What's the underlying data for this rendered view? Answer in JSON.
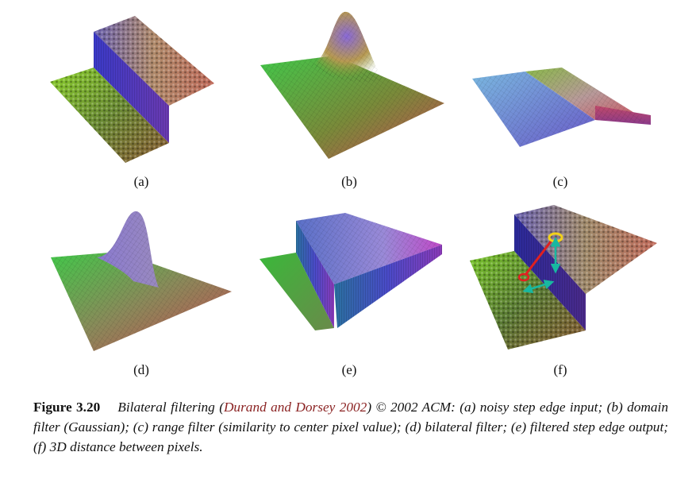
{
  "panels": [
    {
      "id": "a",
      "label": "(a)"
    },
    {
      "id": "b",
      "label": "(b)"
    },
    {
      "id": "c",
      "label": "(c)"
    },
    {
      "id": "d",
      "label": "(d)"
    },
    {
      "id": "e",
      "label": "(e)"
    },
    {
      "id": "f",
      "label": "(f)"
    }
  ],
  "caption": {
    "figure_number": "Figure 3.20",
    "text_before": "Bilateral filtering (",
    "citation": "Durand and Dorsey 2002",
    "text_after": ") © 2002 ACM: (a) noisy step edge input; (b) domain filter (Gaussian); (c) range filter (similarity to center pixel value); (d) bilateral filter; (e) filtered step edge output; (f) 3D distance between pixels."
  },
  "colors": {
    "citation": "#8b2323",
    "green": "#3fbf2a",
    "blue": "#4a45c8",
    "red": "#c84a4a",
    "annotation_yellow": "#f2d11a",
    "annotation_red": "#e02020",
    "annotation_teal": "#18b8a0"
  }
}
